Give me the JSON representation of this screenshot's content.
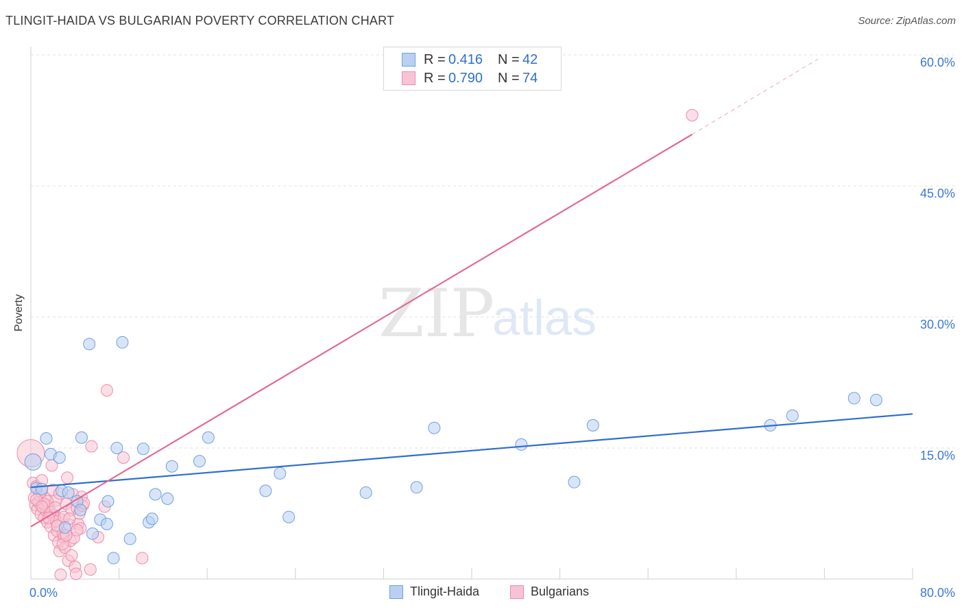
{
  "header": {
    "title": "TLINGIT-HAIDA VS BULGARIAN POVERTY CORRELATION CHART",
    "source": "Source: ZipAtlas.com"
  },
  "watermark": {
    "zip": "ZIP",
    "atlas": "atlas"
  },
  "legend": {
    "rows": [
      {
        "r_label": "R =",
        "r_value": "0.416",
        "n_label": "N =",
        "n_value": "42",
        "fill": "#b8d0f2",
        "stroke": "#6e9fe0"
      },
      {
        "r_label": "R =",
        "r_value": "0.790",
        "n_label": "N =",
        "n_value": "74",
        "fill": "#f8c4d4",
        "stroke": "#ee8aaa"
      }
    ]
  },
  "bottom_legend": [
    {
      "label": "Tlingit-Haida",
      "fill": "#b8d0f2",
      "stroke": "#6e9fe0"
    },
    {
      "label": "Bulgarians",
      "fill": "#f8c4d4",
      "stroke": "#ee8aaa"
    }
  ],
  "chart_data": {
    "type": "scatter",
    "title": "TLINGIT-HAIDA VS BULGARIAN POVERTY CORRELATION CHART",
    "xlabel": "",
    "ylabel": "Poverty",
    "xlim": [
      0,
      80
    ],
    "ylim": [
      0,
      60
    ],
    "x_tick_labels": [
      "0.0%",
      "80.0%"
    ],
    "y_ticks": [
      15,
      30,
      45,
      60
    ],
    "y_tick_labels": [
      "15.0%",
      "30.0%",
      "45.0%",
      "60.0%"
    ],
    "grid": true,
    "series": [
      {
        "name": "Tlingit-Haida",
        "color": "#6e9fe0",
        "fill": "#b8d0f2",
        "line_color": "#2d6fcf",
        "trend": {
          "x": [
            0,
            80
          ],
          "y": [
            10.5,
            18.9
          ]
        },
        "points": [
          [
            0.2,
            13.4
          ],
          [
            0.5,
            10.4
          ],
          [
            1.0,
            10.3
          ],
          [
            1.4,
            16.1
          ],
          [
            1.8,
            14.3
          ],
          [
            2.6,
            13.9
          ],
          [
            2.8,
            10.1
          ],
          [
            3.1,
            5.9
          ],
          [
            3.4,
            9.9
          ],
          [
            4.2,
            8.9
          ],
          [
            4.5,
            7.9
          ],
          [
            4.6,
            16.2
          ],
          [
            5.3,
            26.9
          ],
          [
            5.6,
            5.2
          ],
          [
            6.3,
            6.8
          ],
          [
            6.9,
            6.3
          ],
          [
            7.0,
            8.9
          ],
          [
            7.5,
            2.4
          ],
          [
            7.8,
            15.0
          ],
          [
            8.3,
            27.1
          ],
          [
            9.0,
            4.6
          ],
          [
            10.2,
            14.9
          ],
          [
            10.7,
            6.5
          ],
          [
            11.0,
            6.9
          ],
          [
            11.3,
            9.7
          ],
          [
            12.4,
            9.2
          ],
          [
            12.8,
            12.9
          ],
          [
            15.3,
            13.5
          ],
          [
            16.1,
            16.2
          ],
          [
            21.3,
            10.1
          ],
          [
            22.6,
            12.1
          ],
          [
            23.4,
            7.1
          ],
          [
            30.4,
            9.9
          ],
          [
            35.0,
            10.5
          ],
          [
            36.6,
            17.3
          ],
          [
            44.5,
            15.4
          ],
          [
            49.3,
            11.1
          ],
          [
            51.0,
            17.6
          ],
          [
            67.1,
            17.6
          ],
          [
            69.1,
            18.7
          ],
          [
            74.7,
            20.7
          ],
          [
            76.7,
            20.5
          ]
        ]
      },
      {
        "name": "Bulgarians",
        "color": "#ee8aaa",
        "fill": "#f8c4d4",
        "line_color": "#e46a90",
        "trend": {
          "x": [
            0,
            60
          ],
          "y": [
            6.0,
            50.9
          ]
        },
        "trend_dashed": {
          "x": [
            60,
            71.4
          ],
          "y": [
            50.9,
            59.5
          ]
        },
        "points": [
          [
            0.0,
            14.4
          ],
          [
            0.2,
            11.0
          ],
          [
            0.3,
            9.3
          ],
          [
            0.4,
            8.5
          ],
          [
            0.5,
            10.6
          ],
          [
            0.6,
            8.0
          ],
          [
            0.7,
            8.8
          ],
          [
            0.8,
            9.6
          ],
          [
            0.9,
            7.4
          ],
          [
            1.0,
            11.3
          ],
          [
            1.1,
            8.2
          ],
          [
            1.2,
            7.0
          ],
          [
            1.3,
            9.2
          ],
          [
            1.4,
            7.8
          ],
          [
            1.5,
            6.5
          ],
          [
            1.6,
            8.4
          ],
          [
            1.7,
            7.6
          ],
          [
            1.8,
            6.0
          ],
          [
            1.9,
            13.0
          ],
          [
            2.0,
            10.2
          ],
          [
            2.1,
            5.0
          ],
          [
            2.2,
            7.2
          ],
          [
            2.3,
            9.0
          ],
          [
            2.4,
            5.5
          ],
          [
            2.5,
            4.2
          ],
          [
            2.6,
            3.2
          ],
          [
            2.7,
            0.5
          ],
          [
            2.8,
            6.8
          ],
          [
            2.9,
            5.2
          ],
          [
            3.0,
            4.8
          ],
          [
            3.1,
            3.6
          ],
          [
            3.2,
            8.6
          ],
          [
            3.3,
            11.6
          ],
          [
            3.4,
            2.1
          ],
          [
            3.5,
            6.2
          ],
          [
            3.6,
            4.4
          ],
          [
            3.7,
            7.9
          ],
          [
            3.8,
            9.7
          ],
          [
            3.9,
            4.7
          ],
          [
            4.0,
            1.4
          ],
          [
            4.1,
            0.6
          ],
          [
            4.2,
            8.1
          ],
          [
            4.3,
            6.3
          ],
          [
            4.4,
            7.5
          ],
          [
            4.5,
            5.8
          ],
          [
            4.6,
            9.4
          ],
          [
            4.7,
            8.4
          ],
          [
            4.8,
            8.7
          ],
          [
            5.4,
            1.1
          ],
          [
            5.5,
            15.2
          ],
          [
            6.1,
            4.8
          ],
          [
            6.7,
            8.3
          ],
          [
            6.9,
            21.6
          ],
          [
            8.4,
            13.9
          ],
          [
            10.1,
            2.4
          ],
          [
            0.9,
            10.0
          ],
          [
            1.5,
            8.9
          ],
          [
            2.0,
            7.3
          ],
          [
            2.3,
            6.6
          ],
          [
            2.6,
            9.8
          ],
          [
            3.0,
            7.1
          ],
          [
            3.5,
            6.9
          ],
          [
            1.2,
            8.6
          ],
          [
            1.8,
            7.7
          ],
          [
            2.2,
            8.2
          ],
          [
            2.9,
            4.0
          ],
          [
            3.7,
            2.7
          ],
          [
            0.5,
            9.1
          ],
          [
            1.0,
            8.3
          ],
          [
            4.2,
            5.6
          ],
          [
            2.4,
            6.1
          ],
          [
            3.2,
            5.0
          ],
          [
            1.6,
            7.0
          ],
          [
            60.0,
            53.1
          ]
        ]
      }
    ]
  }
}
